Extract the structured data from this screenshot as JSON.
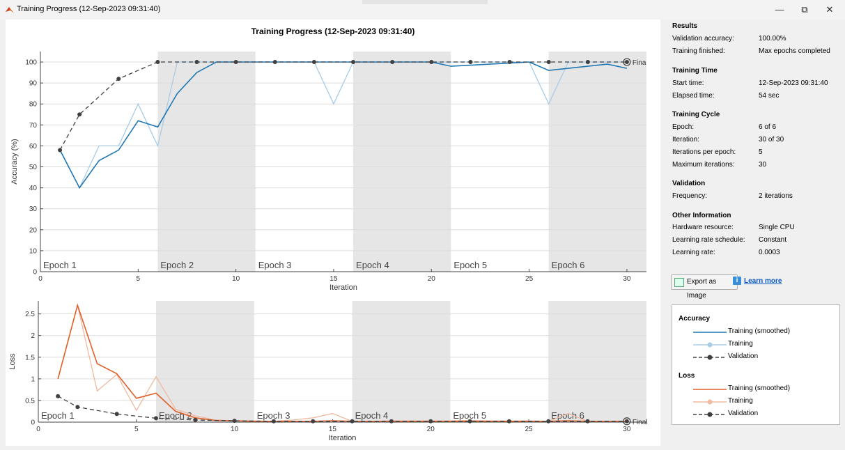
{
  "window": {
    "title": "Training Progress (12-Sep-2023 09:31:40)",
    "controls": [
      "—",
      "⧉",
      "✕"
    ]
  },
  "figure": {
    "title": "Training Progress (12-Sep-2023 09:31:40)",
    "final_label_top": "Fina",
    "final_label_bottom": "Final"
  },
  "colors": {
    "train_smoothed_acc": "#1f77b4",
    "train_acc": "#a8cbe6",
    "train_smoothed_loss": "#e0602a",
    "train_loss": "#f0b9a0",
    "validation": "#404040",
    "epoch_shade": "#e6e6e6"
  },
  "chart_data": [
    {
      "type": "line",
      "xlabel": "Iteration",
      "ylabel": "Accuracy (%)",
      "xlim": [
        0,
        31
      ],
      "ylim": [
        0,
        105
      ],
      "xticks": [
        0,
        5,
        10,
        15,
        20,
        25,
        30
      ],
      "yticks": [
        0,
        10,
        20,
        30,
        40,
        50,
        60,
        70,
        80,
        90,
        100
      ],
      "epochs": [
        {
          "label": "Epoch 1",
          "start": 0,
          "end": 6,
          "shaded": false
        },
        {
          "label": "Epoch 2",
          "start": 6,
          "end": 11,
          "shaded": true
        },
        {
          "label": "Epoch 3",
          "start": 11,
          "end": 16,
          "shaded": false
        },
        {
          "label": "Epoch 4",
          "start": 16,
          "end": 21,
          "shaded": true
        },
        {
          "label": "Epoch 5",
          "start": 21,
          "end": 26,
          "shaded": false
        },
        {
          "label": "Epoch 6",
          "start": 26,
          "end": 31,
          "shaded": true
        }
      ],
      "series": [
        {
          "name": "Training (smoothed)",
          "x": [
            1,
            2,
            3,
            4,
            5,
            6,
            7,
            8,
            9,
            10,
            11,
            12,
            13,
            14,
            15,
            16,
            17,
            18,
            19,
            20,
            21,
            22,
            23,
            24,
            25,
            26,
            27,
            28,
            29,
            30
          ],
          "values": [
            58,
            40,
            53,
            58,
            72,
            69,
            85,
            95,
            100,
            100,
            100,
            100,
            100,
            100,
            100,
            100,
            100,
            100,
            100,
            100,
            98,
            98.5,
            99,
            99.5,
            100,
            96,
            97,
            98,
            99,
            97
          ]
        },
        {
          "name": "Training",
          "x": [
            1,
            2,
            3,
            4,
            5,
            6,
            7,
            8,
            9,
            10,
            11,
            12,
            13,
            14,
            15,
            16,
            17,
            18,
            19,
            20,
            21,
            22,
            23,
            24,
            25,
            26,
            27,
            28,
            29,
            30
          ],
          "values": [
            58,
            40,
            60,
            60,
            80,
            60,
            100,
            100,
            100,
            100,
            100,
            100,
            100,
            100,
            80,
            100,
            100,
            100,
            100,
            100,
            100,
            100,
            100,
            100,
            100,
            80,
            100,
            100,
            100,
            100
          ]
        },
        {
          "name": "Validation",
          "x": [
            1,
            2,
            4,
            6,
            8,
            10,
            12,
            14,
            16,
            18,
            20,
            22,
            24,
            26,
            28,
            30
          ],
          "values": [
            58,
            75,
            92,
            100,
            100,
            100,
            100,
            100,
            100,
            100,
            100,
            100,
            100,
            100,
            100,
            100
          ]
        }
      ]
    },
    {
      "type": "line",
      "xlabel": "Iteration",
      "ylabel": "Loss",
      "xlim": [
        0,
        31
      ],
      "ylim": [
        0,
        2.8
      ],
      "xticks": [
        0,
        5,
        10,
        15,
        20,
        25,
        30
      ],
      "yticks": [
        0,
        0.5,
        1,
        1.5,
        2,
        2.5
      ],
      "ytick_labels": [
        "0",
        "0.5",
        "1",
        "1.5",
        "2",
        "2.5"
      ],
      "epochs": [
        {
          "label": "Epoch 1",
          "start": 0,
          "end": 6,
          "shaded": false
        },
        {
          "label": "Epoch 2",
          "start": 6,
          "end": 11,
          "shaded": true
        },
        {
          "label": "Epoch 3",
          "start": 11,
          "end": 16,
          "shaded": false
        },
        {
          "label": "Epoch 4",
          "start": 16,
          "end": 21,
          "shaded": true
        },
        {
          "label": "Epoch 5",
          "start": 21,
          "end": 26,
          "shaded": false
        },
        {
          "label": "Epoch 6",
          "start": 26,
          "end": 31,
          "shaded": true
        }
      ],
      "series": [
        {
          "name": "Training (smoothed)",
          "x": [
            1,
            2,
            3,
            4,
            5,
            6,
            7,
            8,
            9,
            10,
            11,
            12,
            13,
            14,
            15,
            16,
            17,
            18,
            19,
            20,
            21,
            22,
            23,
            24,
            25,
            26,
            27,
            28,
            29,
            30
          ],
          "values": [
            1.0,
            2.7,
            1.35,
            1.12,
            0.55,
            0.67,
            0.25,
            0.1,
            0.04,
            0.03,
            0.02,
            0.02,
            0.02,
            0.02,
            0.03,
            0.02,
            0.02,
            0.02,
            0.02,
            0.02,
            0.02,
            0.02,
            0.02,
            0.02,
            0.02,
            0.02,
            0.03,
            0.02,
            0.02,
            0.02
          ]
        },
        {
          "name": "Training",
          "x": [
            1,
            2,
            3,
            4,
            5,
            6,
            7,
            8,
            9,
            10,
            11,
            12,
            13,
            14,
            15,
            16,
            17,
            18,
            19,
            20,
            21,
            22,
            23,
            24,
            25,
            26,
            27,
            28,
            29,
            30
          ],
          "values": [
            1.0,
            2.7,
            0.72,
            1.1,
            0.27,
            1.05,
            0.3,
            0.15,
            0.05,
            0.03,
            0.03,
            0.02,
            0.05,
            0.1,
            0.2,
            0.02,
            0.02,
            0.03,
            0.03,
            0.03,
            0.03,
            0.04,
            0.03,
            0.03,
            0.03,
            0.02,
            0.2,
            0.02,
            0.02,
            0.02
          ]
        },
        {
          "name": "Validation",
          "x": [
            1,
            2,
            4,
            6,
            8,
            10,
            12,
            14,
            16,
            18,
            20,
            22,
            24,
            26,
            28,
            30
          ],
          "values": [
            0.6,
            0.35,
            0.19,
            0.09,
            0.05,
            0.03,
            0.02,
            0.02,
            0.02,
            0.02,
            0.02,
            0.02,
            0.02,
            0.02,
            0.02,
            0.02
          ]
        }
      ]
    }
  ],
  "panel": {
    "results": {
      "title": "Results",
      "rows": [
        {
          "label": "Validation accuracy:",
          "value": "100.00%"
        },
        {
          "label": "Training finished:",
          "value": "Max epochs completed"
        }
      ]
    },
    "training_time": {
      "title": "Training Time",
      "rows": [
        {
          "label": "Start time:",
          "value": "12-Sep-2023 09:31:40"
        },
        {
          "label": "Elapsed time:",
          "value": "54 sec"
        }
      ]
    },
    "training_cycle": {
      "title": "Training Cycle",
      "rows": [
        {
          "label": "Epoch:",
          "value": "6 of 6"
        },
        {
          "label": "Iteration:",
          "value": "30 of 30"
        },
        {
          "label": "Iterations per epoch:",
          "value": "5"
        },
        {
          "label": "Maximum iterations:",
          "value": "30"
        }
      ]
    },
    "validation": {
      "title": "Validation",
      "rows": [
        {
          "label": "Frequency:",
          "value": "2 iterations"
        }
      ]
    },
    "other": {
      "title": "Other Information",
      "rows": [
        {
          "label": "Hardware resource:",
          "value": "Single CPU"
        },
        {
          "label": "Learning rate schedule:",
          "value": "Constant"
        },
        {
          "label": "Learning rate:",
          "value": "0.0003"
        }
      ]
    },
    "export_label": "Export as Image",
    "learn_more": "Learn more"
  },
  "legend": {
    "accuracy_title": "Accuracy",
    "loss_title": "Loss",
    "accuracy_items": [
      "Training (smoothed)",
      "Training",
      "Validation"
    ],
    "loss_items": [
      "Training (smoothed)",
      "Training",
      "Validation"
    ]
  }
}
